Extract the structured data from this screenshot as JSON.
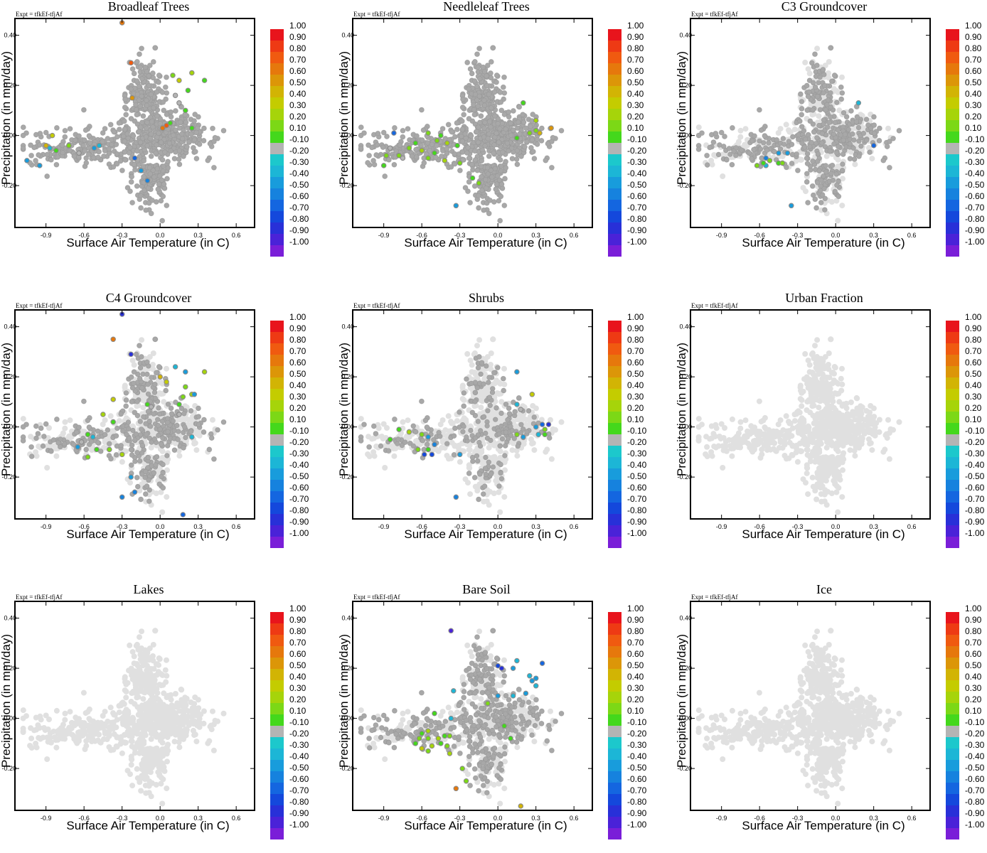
{
  "chart_data": {
    "type": "scatter",
    "expt_label": "Expt = tfkEf-tfjAf",
    "xlabel": "Surface Air Temperature (in C)",
    "ylabel": "Precipitation (in mm/day)",
    "xlim": [
      -1.1,
      0.7
    ],
    "ylim": [
      -0.35,
      0.45
    ],
    "xticks": [
      "-0.9",
      "-0.6",
      "-0.3",
      "0.0",
      "0.3",
      "0.6"
    ],
    "yticks": [
      "0.40",
      "0.20",
      "0.00",
      "-0.20"
    ],
    "colorbar": {
      "labels": [
        "1.00",
        "0.90",
        "0.80",
        "0.70",
        "0.60",
        "0.50",
        "0.40",
        "0.30",
        "0.20",
        "0.10",
        "-0.10",
        "-0.20",
        "-0.30",
        "-0.40",
        "-0.50",
        "-0.60",
        "-0.70",
        "-0.80",
        "-0.90",
        "-1.00"
      ],
      "colors": [
        "#e8141c",
        "#ee3a14",
        "#f05a10",
        "#e6780c",
        "#dc9608",
        "#d2b404",
        "#c4cc00",
        "#a6d40a",
        "#7cd816",
        "#44d81c",
        "#b4b4b4",
        "#1cc8cc",
        "#1cb6d6",
        "#189cdc",
        "#1682de",
        "#1466e0",
        "#1448dc",
        "#2830d8",
        "#4a22d8",
        "#7a1ed8"
      ]
    },
    "panels": [
      {
        "title": "Broadleaf Trees",
        "n_gray": 1000,
        "colored": [
          [
            -0.3,
            0.45,
            0.75
          ],
          [
            -0.23,
            0.29,
            0.78
          ],
          [
            0.1,
            0.24,
            0.2
          ],
          [
            0.25,
            0.25,
            0.3
          ],
          [
            0.15,
            0.22,
            0.45
          ],
          [
            0.35,
            0.22,
            0.15
          ],
          [
            0.22,
            0.18,
            0.15
          ],
          [
            0.12,
            0.16,
            0.1
          ],
          [
            -0.22,
            0.15,
            0.62
          ],
          [
            0.15,
            0.13,
            0.1
          ],
          [
            0.2,
            0.1,
            0.15
          ],
          [
            0.05,
            0.04,
            0.85
          ],
          [
            0.02,
            0.03,
            0.75
          ],
          [
            0.08,
            0.05,
            0.15
          ],
          [
            -0.85,
            0.0,
            0.4
          ],
          [
            -0.9,
            -0.04,
            0.5
          ],
          [
            -0.87,
            -0.05,
            -0.2
          ],
          [
            -0.72,
            -0.04,
            0.2
          ],
          [
            -0.82,
            -0.06,
            0.15
          ],
          [
            -0.64,
            -0.07,
            0.1
          ],
          [
            -0.48,
            -0.04,
            -0.15
          ],
          [
            -0.52,
            -0.05,
            -0.3
          ],
          [
            -0.2,
            -0.09,
            -0.5
          ],
          [
            -0.15,
            -0.14,
            -0.3
          ],
          [
            -0.1,
            -0.18,
            -0.35
          ],
          [
            -1.05,
            -0.1,
            -0.25
          ],
          [
            -0.95,
            -0.12,
            -0.3
          ],
          [
            0.25,
            0.03,
            0.15
          ]
        ]
      },
      {
        "title": "Needleleaf Trees",
        "n_gray": 900,
        "colored": [
          [
            0.2,
            0.13,
            0.15
          ],
          [
            0.3,
            0.06,
            0.35
          ],
          [
            0.33,
            0.01,
            0.5
          ],
          [
            0.42,
            0.03,
            0.65
          ],
          [
            0.3,
            0.02,
            0.2
          ],
          [
            0.25,
            0.01,
            0.25
          ],
          [
            0.15,
            -0.01,
            0.15
          ],
          [
            -0.55,
            0.01,
            0.2
          ],
          [
            -0.45,
            0.0,
            0.15
          ],
          [
            -0.48,
            -0.02,
            0.2
          ],
          [
            -0.4,
            -0.03,
            0.3
          ],
          [
            -0.32,
            -0.04,
            0.15
          ],
          [
            -0.65,
            -0.03,
            0.15
          ],
          [
            -0.7,
            -0.05,
            0.2
          ],
          [
            -0.85,
            -0.05,
            0.1
          ],
          [
            -0.78,
            -0.08,
            0.25
          ],
          [
            -0.6,
            -0.06,
            0.3
          ],
          [
            -0.5,
            -0.07,
            0.15
          ],
          [
            -0.55,
            -0.09,
            0.2
          ],
          [
            -0.42,
            -0.1,
            0.35
          ],
          [
            -0.3,
            -0.11,
            0.2
          ],
          [
            -0.9,
            -0.12,
            0.15
          ],
          [
            -0.88,
            -0.08,
            0.2
          ],
          [
            -0.82,
            0.01,
            -0.45
          ],
          [
            -0.2,
            -0.17,
            0.15
          ],
          [
            -0.15,
            -0.19,
            0.2
          ],
          [
            -0.33,
            -0.28,
            -0.3
          ],
          [
            -0.75,
            -0.09,
            0.1
          ]
        ]
      },
      {
        "title": "C3 Groundcover",
        "n_gray": 450,
        "colored": [
          [
            0.18,
            0.13,
            -0.2
          ],
          [
            0.3,
            -0.04,
            -0.45
          ],
          [
            -0.38,
            -0.07,
            -0.3
          ],
          [
            -0.45,
            -0.07,
            -0.25
          ],
          [
            -0.55,
            -0.09,
            -0.35
          ],
          [
            -0.62,
            -0.12,
            0.2
          ],
          [
            -0.55,
            -0.12,
            -0.2
          ],
          [
            -0.52,
            -0.1,
            0.25
          ],
          [
            -0.45,
            -0.11,
            0.15
          ],
          [
            -0.42,
            -0.11,
            0.2
          ],
          [
            -0.35,
            -0.28,
            -0.25
          ],
          [
            -0.57,
            -0.11,
            0.15
          ]
        ]
      },
      {
        "title": "C4 Groundcover",
        "n_gray": 380,
        "colored": [
          [
            -0.3,
            0.45,
            -0.7
          ],
          [
            -0.37,
            0.35,
            0.75
          ],
          [
            -0.23,
            0.29,
            -0.7
          ],
          [
            0.12,
            0.24,
            -0.2
          ],
          [
            0.2,
            0.22,
            -0.25
          ],
          [
            0.35,
            0.22,
            0.3
          ],
          [
            0.0,
            0.2,
            0.5
          ],
          [
            0.05,
            0.18,
            0.45
          ],
          [
            -0.37,
            0.11,
            0.4
          ],
          [
            0.2,
            0.16,
            0.25
          ],
          [
            0.25,
            0.13,
            0.3
          ],
          [
            0.18,
            0.12,
            0.2
          ],
          [
            0.27,
            0.13,
            -0.25
          ],
          [
            -0.1,
            0.09,
            0.15
          ],
          [
            -0.07,
            0.08,
            0.1
          ],
          [
            0.15,
            0.09,
            0.15
          ],
          [
            -0.45,
            0.05,
            0.35
          ],
          [
            -0.37,
            0.02,
            0.15
          ],
          [
            0.15,
            0.05,
            0.1
          ],
          [
            -0.57,
            -0.03,
            0.15
          ],
          [
            -0.62,
            -0.06,
            0.1
          ],
          [
            -0.65,
            -0.08,
            -0.25
          ],
          [
            -0.5,
            -0.09,
            0.15
          ],
          [
            -0.57,
            -0.12,
            0.2
          ],
          [
            -0.4,
            -0.09,
            0.25
          ],
          [
            -0.3,
            -0.11,
            0.3
          ],
          [
            0.25,
            -0.04,
            -0.2
          ],
          [
            -0.23,
            -0.2,
            -0.3
          ],
          [
            -0.2,
            -0.26,
            -0.35
          ],
          [
            -0.3,
            -0.28,
            -0.4
          ],
          [
            0.18,
            -0.35,
            -0.5
          ],
          [
            -0.53,
            -0.04,
            -0.2
          ]
        ]
      },
      {
        "title": "Shrubs",
        "n_gray": 220,
        "colored": [
          [
            0.15,
            0.22,
            -0.25
          ],
          [
            0.27,
            0.13,
            0.4
          ],
          [
            0.15,
            0.09,
            -0.2
          ],
          [
            0.18,
            0.07,
            0.1
          ],
          [
            0.35,
            0.01,
            -0.5
          ],
          [
            0.4,
            0.01,
            -0.7
          ],
          [
            0.37,
            -0.01,
            0.2
          ],
          [
            0.3,
            0.0,
            -0.3
          ],
          [
            0.32,
            -0.03,
            -0.2
          ],
          [
            0.37,
            -0.03,
            0.15
          ],
          [
            0.15,
            -0.03,
            0.2
          ],
          [
            0.2,
            -0.04,
            -0.25
          ],
          [
            -0.78,
            -0.01,
            0.15
          ],
          [
            -0.7,
            -0.02,
            0.35
          ],
          [
            -0.6,
            -0.03,
            0.2
          ],
          [
            -0.55,
            -0.04,
            -0.3
          ],
          [
            -0.5,
            -0.07,
            -0.35
          ],
          [
            -0.55,
            -0.09,
            0.15
          ],
          [
            -0.58,
            -0.11,
            -0.6
          ],
          [
            -0.52,
            -0.11,
            -0.55
          ],
          [
            -0.63,
            -0.09,
            0.2
          ],
          [
            -0.3,
            -0.11,
            -0.3
          ],
          [
            -0.33,
            -0.28,
            -0.35
          ],
          [
            -0.85,
            -0.05,
            0.15
          ]
        ]
      },
      {
        "title": "Urban Fraction",
        "n_gray": 0,
        "colored": []
      },
      {
        "title": "Lakes",
        "n_gray": 0,
        "colored": []
      },
      {
        "title": "Bare Soil",
        "n_gray": 420,
        "colored": [
          [
            -0.37,
            0.35,
            -0.75
          ],
          [
            0.0,
            0.21,
            -0.6
          ],
          [
            0.03,
            0.2,
            -0.65
          ],
          [
            0.15,
            0.23,
            -0.2
          ],
          [
            0.12,
            0.2,
            -0.25
          ],
          [
            0.35,
            0.22,
            -0.45
          ],
          [
            0.25,
            0.17,
            -0.2
          ],
          [
            0.3,
            0.16,
            -0.25
          ],
          [
            0.27,
            0.15,
            -0.3
          ],
          [
            0.3,
            0.13,
            -0.2
          ],
          [
            0.22,
            0.1,
            -0.25
          ],
          [
            -0.35,
            0.11,
            -0.2
          ],
          [
            0.0,
            0.09,
            -0.25
          ],
          [
            0.12,
            0.09,
            -0.2
          ],
          [
            -0.08,
            0.06,
            0.2
          ],
          [
            -0.5,
            0.02,
            0.15
          ],
          [
            -0.37,
            0.0,
            -0.2
          ],
          [
            0.05,
            -0.03,
            0.15
          ],
          [
            0.1,
            -0.08,
            0.15
          ],
          [
            -0.55,
            -0.05,
            0.3
          ],
          [
            -0.6,
            -0.06,
            0.15
          ],
          [
            -0.62,
            -0.08,
            0.2
          ],
          [
            -0.55,
            -0.08,
            0.25
          ],
          [
            -0.47,
            -0.08,
            0.3
          ],
          [
            -0.42,
            -0.07,
            0.15
          ],
          [
            -0.38,
            -0.07,
            0.2
          ],
          [
            -0.65,
            -0.1,
            0.15
          ],
          [
            -0.6,
            -0.12,
            0.4
          ],
          [
            -0.52,
            -0.11,
            0.3
          ],
          [
            -0.55,
            -0.13,
            0.2
          ],
          [
            -0.45,
            -0.1,
            0.15
          ],
          [
            -0.4,
            -0.11,
            0.2
          ],
          [
            -0.38,
            -0.14,
            0.3
          ],
          [
            -0.28,
            -0.2,
            0.2
          ],
          [
            -0.33,
            -0.28,
            0.75
          ],
          [
            -0.25,
            -0.25,
            0.25
          ],
          [
            0.18,
            -0.35,
            0.5
          ]
        ]
      },
      {
        "title": "Ice",
        "n_gray": 0,
        "colored": []
      }
    ]
  }
}
